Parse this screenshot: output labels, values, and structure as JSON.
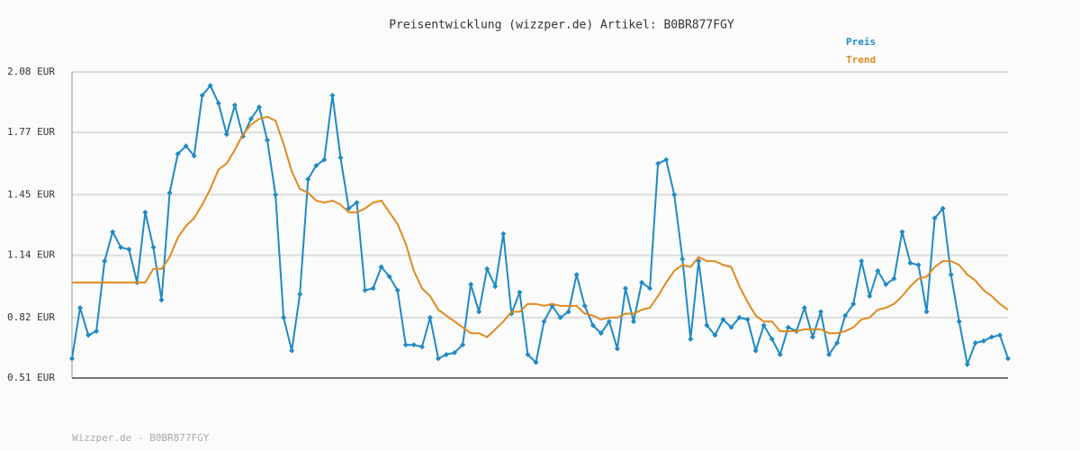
{
  "chart_data": {
    "type": "line",
    "title": "Preisentwicklung (wizzper.de) Artikel: B0BR877FGY",
    "footer": "Wizzper.de - B0BR877FGY",
    "legend": "top-right",
    "grid": true,
    "ylim": [
      0.51,
      2.08
    ],
    "yticks": [
      {
        "value": 0.51,
        "label": "0.51 EUR"
      },
      {
        "value": 0.82,
        "label": "0.82 EUR"
      },
      {
        "value": 1.14,
        "label": "1.14 EUR"
      },
      {
        "value": 1.45,
        "label": "1.45 EUR"
      },
      {
        "value": 1.77,
        "label": "1.77 EUR"
      },
      {
        "value": 2.08,
        "label": "2.08 EUR"
      }
    ],
    "series": [
      {
        "name": "Preis",
        "color": "#1f8ac4",
        "markers": true,
        "values": [
          0.61,
          0.87,
          0.73,
          0.75,
          1.11,
          1.26,
          1.18,
          1.17,
          1.0,
          1.36,
          1.18,
          0.91,
          1.46,
          1.66,
          1.7,
          1.65,
          1.96,
          2.01,
          1.92,
          1.76,
          1.91,
          1.75,
          1.84,
          1.9,
          1.73,
          1.45,
          0.82,
          0.65,
          0.94,
          1.53,
          1.6,
          1.63,
          1.96,
          1.64,
          1.38,
          1.41,
          0.96,
          0.97,
          1.08,
          1.03,
          0.96,
          0.68,
          0.68,
          0.67,
          0.82,
          0.61,
          0.63,
          0.64,
          0.68,
          0.99,
          0.85,
          1.07,
          0.98,
          1.25,
          0.84,
          0.95,
          0.63,
          0.59,
          0.8,
          0.88,
          0.82,
          0.85,
          1.04,
          0.88,
          0.78,
          0.74,
          0.8,
          0.66,
          0.97,
          0.8,
          1.0,
          0.97,
          1.61,
          1.63,
          1.45,
          1.12,
          0.71,
          1.11,
          0.78,
          0.73,
          0.81,
          0.77,
          0.82,
          0.81,
          0.65,
          0.78,
          0.71,
          0.63,
          0.77,
          0.75,
          0.87,
          0.72,
          0.85,
          0.63,
          0.69,
          0.83,
          0.89,
          1.11,
          0.93,
          1.06,
          0.99,
          1.02,
          1.26,
          1.1,
          1.09,
          0.85,
          1.33,
          1.38,
          1.04,
          0.8,
          0.58,
          0.69,
          0.7,
          0.72,
          0.73,
          0.61
        ]
      },
      {
        "name": "Trend",
        "color": "#e08a1e",
        "markers": false,
        "values": [
          1.0,
          1.0,
          1.0,
          1.0,
          1.0,
          1.0,
          1.0,
          1.0,
          1.0,
          1.0,
          1.07,
          1.07,
          1.13,
          1.23,
          1.29,
          1.33,
          1.4,
          1.48,
          1.58,
          1.61,
          1.68,
          1.76,
          1.81,
          1.84,
          1.85,
          1.83,
          1.71,
          1.57,
          1.48,
          1.46,
          1.42,
          1.41,
          1.42,
          1.4,
          1.36,
          1.36,
          1.38,
          1.41,
          1.42,
          1.36,
          1.3,
          1.2,
          1.06,
          0.97,
          0.93,
          0.86,
          0.83,
          0.8,
          0.77,
          0.74,
          0.74,
          0.72,
          0.76,
          0.8,
          0.85,
          0.85,
          0.89,
          0.89,
          0.88,
          0.89,
          0.88,
          0.88,
          0.88,
          0.84,
          0.83,
          0.81,
          0.82,
          0.82,
          0.84,
          0.84,
          0.86,
          0.87,
          0.93,
          1.0,
          1.06,
          1.09,
          1.08,
          1.13,
          1.11,
          1.11,
          1.09,
          1.08,
          0.98,
          0.9,
          0.83,
          0.8,
          0.8,
          0.75,
          0.75,
          0.75,
          0.76,
          0.76,
          0.76,
          0.74,
          0.74,
          0.75,
          0.77,
          0.81,
          0.82,
          0.86,
          0.87,
          0.89,
          0.93,
          0.98,
          1.02,
          1.03,
          1.08,
          1.11,
          1.11,
          1.09,
          1.04,
          1.01,
          0.96,
          0.93,
          0.89,
          0.86
        ]
      }
    ]
  }
}
